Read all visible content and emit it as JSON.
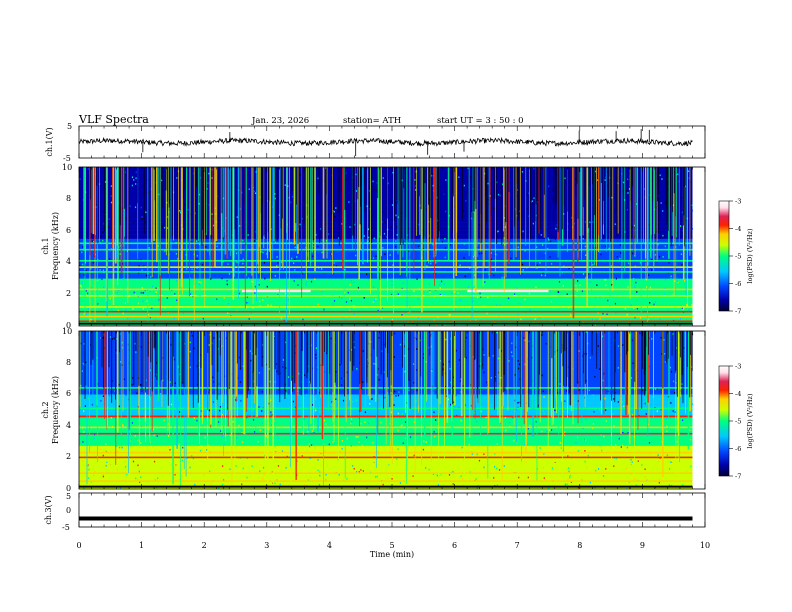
{
  "header": {
    "title": "VLF  Spectra",
    "date": "Jan. 23, 2026",
    "station": "station= ATH",
    "start_ut": "start  UT  =   3  : 50 : 0"
  },
  "colorbar_label": "log(PSD) (V²/Hz)",
  "colors": {
    "scale": [
      "#000033",
      "#0000aa",
      "#0044ff",
      "#00c8ff",
      "#00ff80",
      "#ccff00",
      "#ffd000",
      "#ff2000",
      "#dd2255",
      "#ffe0ea",
      "#ffffff"
    ],
    "waveform": "#000000"
  },
  "chart_data": [
    {
      "type": "line",
      "name": "ch1-waveform",
      "ylabel": "ch.1(V)",
      "xlim": [
        0,
        10
      ],
      "ylim": [
        -5,
        5
      ],
      "yticks": [
        "5",
        "-5"
      ],
      "baseline": 0,
      "data_end_min": 9.8,
      "spikes": [
        {
          "x": 2.41,
          "y": 3.1
        },
        {
          "x": 4.42,
          "y": -4.4
        },
        {
          "x": 5.57,
          "y": -4.0
        },
        {
          "x": 7.99,
          "y": 3.5
        },
        {
          "x": 8.58,
          "y": 3.4
        },
        {
          "x": 8.98,
          "y": 4.0
        },
        {
          "x": 9.11,
          "y": 3.8
        },
        {
          "x": 1.02,
          "y": -3.2
        },
        {
          "x": 6.15,
          "y": -3.0
        }
      ]
    },
    {
      "type": "heatmap",
      "name": "ch1-spectrogram",
      "ylabel": "ch.1",
      "ylabel2": "Frequency  (kHz)",
      "xlim": [
        0,
        10
      ],
      "ylim": [
        0,
        10
      ],
      "yticks": [
        "0",
        "2",
        "4",
        "6",
        "8",
        "10"
      ],
      "colorbar": {
        "min": -7,
        "max": -3,
        "ticks": [
          "-3",
          "-4",
          "-5",
          "-6",
          "-7"
        ]
      },
      "data_end_min": 9.8,
      "bands_khz": [
        {
          "f": 0.3,
          "level": -4.2
        },
        {
          "f": 0.6,
          "level": -4.6
        },
        {
          "f": 0.9,
          "level": -4.3
        },
        {
          "f": 1.2,
          "level": -4.9
        },
        {
          "f": 1.9,
          "level": -5.0
        },
        {
          "f": 2.3,
          "level": -4.6
        },
        {
          "f": 3.4,
          "level": -5.3
        },
        {
          "f": 3.7,
          "level": -5.2
        },
        {
          "f": 4.1,
          "level": -5.6
        },
        {
          "f": 4.8,
          "level": -5.4
        },
        {
          "f": 5.2,
          "level": -5.6
        }
      ],
      "segments": [
        {
          "t0": 2.6,
          "t1": 3.7,
          "f": 2.2,
          "level": -3.6
        },
        {
          "t0": 6.2,
          "t1": 7.5,
          "f": 2.2,
          "level": -3.6
        }
      ]
    },
    {
      "type": "heatmap",
      "name": "ch2-spectrogram",
      "ylabel": "ch.2",
      "ylabel2": "Frequency  (kHz)",
      "xlim": [
        0,
        10
      ],
      "ylim": [
        0,
        10
      ],
      "yticks": [
        "0",
        "2",
        "4",
        "6",
        "8",
        "10"
      ],
      "colorbar": {
        "min": -7,
        "max": -3,
        "ticks": [
          "-3",
          "-4",
          "-5",
          "-6",
          "-7"
        ]
      },
      "data_end_min": 9.8,
      "bands_khz": [
        {
          "f": 0.5,
          "level": -4.8
        },
        {
          "f": 1.0,
          "level": -4.6
        },
        {
          "f": 1.6,
          "level": -4.9
        },
        {
          "f": 2.0,
          "level": -4.2
        },
        {
          "f": 2.3,
          "level": -4.4
        },
        {
          "f": 3.5,
          "level": -4.0
        },
        {
          "f": 3.9,
          "level": -4.8
        },
        {
          "f": 4.6,
          "level": -4.1
        },
        {
          "f": 5.1,
          "level": -5.4
        },
        {
          "f": 6.4,
          "level": -5.3
        }
      ],
      "segments": []
    },
    {
      "type": "line",
      "name": "ch3-waveform",
      "ylabel": "ch.3(V)",
      "xlabel": "Time  (min)",
      "xlim": [
        0,
        10
      ],
      "ylim": [
        -5,
        5
      ],
      "yticks": [
        "5",
        "0",
        "-5"
      ],
      "xticks": [
        "0",
        "1",
        "2",
        "3",
        "4",
        "5",
        "6",
        "7",
        "8",
        "9",
        "10"
      ],
      "baseline": -2.5,
      "data_end_min": 9.8
    }
  ]
}
